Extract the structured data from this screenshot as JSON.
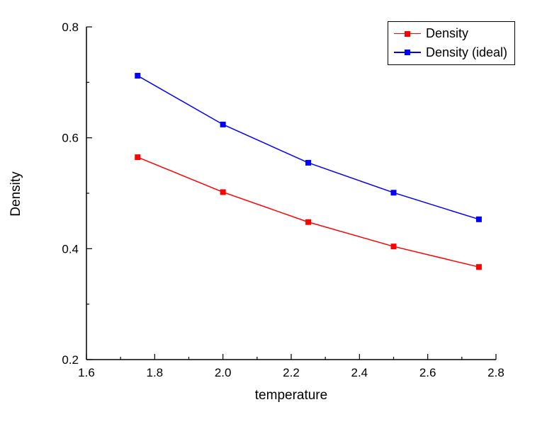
{
  "chart_data": {
    "type": "line",
    "title": "",
    "xlabel": "temperature",
    "ylabel": "Density",
    "xlim": [
      1.6,
      2.8
    ],
    "ylim": [
      0.2,
      0.8
    ],
    "x_major_ticks": [
      1.6,
      1.8,
      2.0,
      2.2,
      2.4,
      2.6,
      2.8
    ],
    "x_tick_labels": [
      "1.6",
      "1.8",
      "2.0",
      "2.2",
      "2.4",
      "2.6",
      "2.8"
    ],
    "x_minor_step": 0.1,
    "y_major_ticks": [
      0.2,
      0.4,
      0.6,
      0.8
    ],
    "y_tick_labels": [
      "0.2",
      "0.4",
      "0.6",
      "0.8"
    ],
    "y_minor_step": 0.1,
    "grid": false,
    "legend_position": "top-right",
    "x": [
      1.75,
      2.0,
      2.25,
      2.5,
      2.75
    ],
    "series": [
      {
        "name": "Density",
        "color": "#ff0000",
        "marker": "square",
        "values": [
          0.565,
          0.502,
          0.448,
          0.404,
          0.367
        ]
      },
      {
        "name": "Density (ideal)",
        "color": "#0000ff",
        "marker": "square",
        "values": [
          0.712,
          0.624,
          0.555,
          0.501,
          0.453
        ]
      }
    ]
  }
}
